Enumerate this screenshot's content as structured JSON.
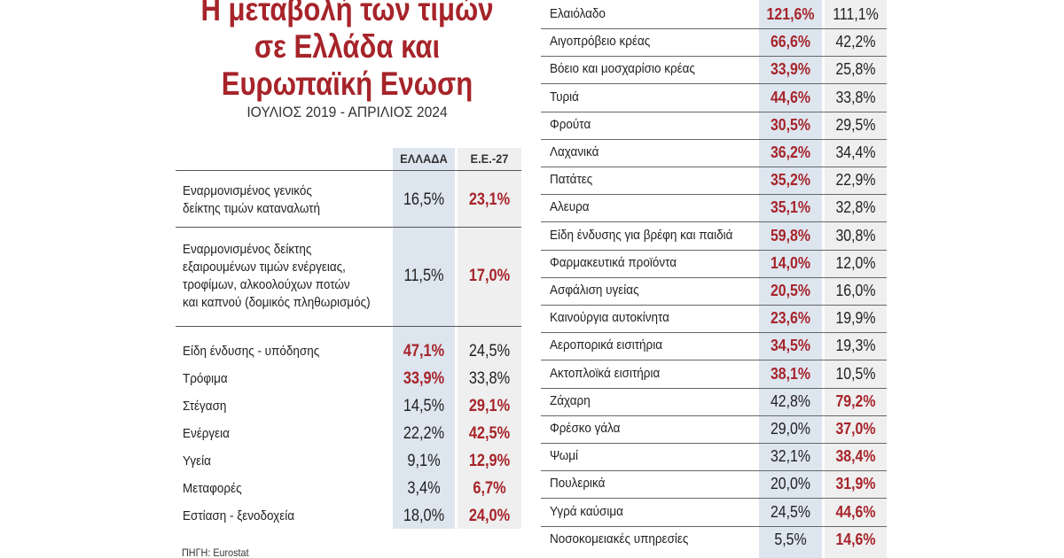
{
  "title": {
    "line1": "Η μεταβολή των τιμών",
    "line2": "σε Ελλάδα και",
    "line3": "Ευρωπαϊκή Ενωση"
  },
  "subtitle": "ΙΟΥΛΙΟΣ 2019 - ΑΠΡΙΛΙΟΣ 2024",
  "columns": {
    "greece": "ΕΛΛΑΔΑ",
    "eu": "Ε.Ε.-27"
  },
  "colors": {
    "highlight": "#a6242a",
    "greece_column": "#dde5ef",
    "eu_column": "#efefef"
  },
  "left_rows": [
    {
      "label": "Εναρμονισμένος γενικός\nδείκτης τιμών καταναλωτή",
      "greece": "16,5%",
      "eu": "23,1%",
      "higher": "eu"
    },
    {
      "label": "Εναρμονισμένος δείκτης\nεξαιρουμένων τιμών ενέργειας,\nτροφίμων, αλκοολούχων ποτών\nκαι καπνού (δομικός πληθωρισμός)",
      "greece": "11,5%",
      "eu": "17,0%",
      "higher": "eu"
    },
    {
      "label": "Είδη ένδυσης - υπόδησης",
      "greece": "47,1%",
      "eu": "24,5%",
      "higher": "greece"
    },
    {
      "label": "Τρόφιμα",
      "greece": "33,9%",
      "eu": "33,8%",
      "higher": "greece"
    },
    {
      "label": "Στέγαση",
      "greece": "14,5%",
      "eu": "29,1%",
      "higher": "eu"
    },
    {
      "label": "Ενέργεια",
      "greece": "22,2%",
      "eu": "42,5%",
      "higher": "eu"
    },
    {
      "label": "Υγεία",
      "greece": "9,1%",
      "eu": "12,9%",
      "higher": "eu"
    },
    {
      "label": "Μεταφορές",
      "greece": "3,4%",
      "eu": "6,7%",
      "higher": "eu"
    },
    {
      "label": "Εστίαση - ξενοδοχεία",
      "greece": "18,0%",
      "eu": "24,0%",
      "higher": "eu"
    }
  ],
  "right_rows": [
    {
      "label": "Ελαιόλαδο",
      "greece": "121,6%",
      "eu": "111,1%",
      "higher": "greece"
    },
    {
      "label": "Αιγοπρόβειο κρέας",
      "greece": "66,6%",
      "eu": "42,2%",
      "higher": "greece"
    },
    {
      "label": "Βόειο και μοσχαρίσιο κρέας",
      "greece": "33,9%",
      "eu": "25,8%",
      "higher": "greece"
    },
    {
      "label": "Τυριά",
      "greece": "44,6%",
      "eu": "33,8%",
      "higher": "greece"
    },
    {
      "label": "Φρούτα",
      "greece": "30,5%",
      "eu": "29,5%",
      "higher": "greece"
    },
    {
      "label": "Λαχανικά",
      "greece": "36,2%",
      "eu": "34,4%",
      "higher": "greece"
    },
    {
      "label": "Πατάτες",
      "greece": "35,2%",
      "eu": "22,9%",
      "higher": "greece"
    },
    {
      "label": "Αλευρα",
      "greece": "35,1%",
      "eu": "32,8%",
      "higher": "greece"
    },
    {
      "label": "Είδη ένδυσης για βρέφη και παιδιά",
      "greece": "59,8%",
      "eu": "30,8%",
      "higher": "greece"
    },
    {
      "label": "Φαρμακευτικά προϊόντα",
      "greece": "14,0%",
      "eu": "12,0%",
      "higher": "greece"
    },
    {
      "label": "Ασφάλιση υγείας",
      "greece": "20,5%",
      "eu": "16,0%",
      "higher": "greece"
    },
    {
      "label": "Καινούργια αυτοκίνητα",
      "greece": "23,6%",
      "eu": "19,9%",
      "higher": "greece"
    },
    {
      "label": "Αεροπορικά εισιτήρια",
      "greece": "34,5%",
      "eu": "19,3%",
      "higher": "greece"
    },
    {
      "label": "Ακτοπλοϊκά εισιτήρια",
      "greece": "38,1%",
      "eu": "10,5%",
      "higher": "greece"
    },
    {
      "label": "Ζάχαρη",
      "greece": "42,8%",
      "eu": "79,2%",
      "higher": "eu"
    },
    {
      "label": "Φρέσκο γάλα",
      "greece": "29,0%",
      "eu": "37,0%",
      "higher": "eu"
    },
    {
      "label": "Ψωμί",
      "greece": "32,1%",
      "eu": "38,4%",
      "higher": "eu"
    },
    {
      "label": "Πουλερικά",
      "greece": "20,0%",
      "eu": "31,9%",
      "higher": "eu"
    },
    {
      "label": "Υγρά καύσιμα",
      "greece": "24,5%",
      "eu": "44,6%",
      "higher": "eu"
    },
    {
      "label": "Νοσοκομειακές υπηρεσίες",
      "greece": "5,5%",
      "eu": "14,6%",
      "higher": "eu"
    }
  ],
  "source": "ΠΗΓΗ: Eurostat"
}
